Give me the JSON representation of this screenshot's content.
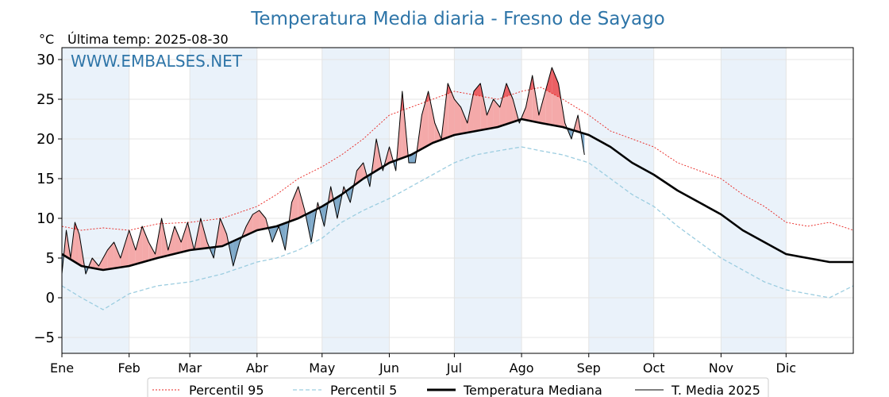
{
  "title": "Temperatura Media diaria - Fresno de Sayago",
  "unit_label": "°C",
  "last_temp_label": "Última temp: 2025-08-30",
  "watermark": "WWW.EMBALSES.NET",
  "chart_data": {
    "type": "line",
    "title": "Temperatura Media diaria - Fresno de Sayago",
    "ylabel": "°C",
    "ylim": [
      -7,
      31.5
    ],
    "xlim": [
      1,
      366
    ],
    "yticks": [
      -5,
      0,
      5,
      10,
      15,
      20,
      25,
      30
    ],
    "months": [
      "Ene",
      "Feb",
      "Mar",
      "Abr",
      "May",
      "Jun",
      "Jul",
      "Ago",
      "Sep",
      "Oct",
      "Nov",
      "Dic"
    ],
    "month_start_days": [
      1,
      32,
      60,
      91,
      121,
      152,
      182,
      213,
      244,
      274,
      305,
      335
    ],
    "x_unit": "day of year",
    "grid": true,
    "legend_position": "bottom",
    "last_day": 242,
    "colors": {
      "p95": "#e8231f",
      "p5": "#9ccde0",
      "median": "#000000",
      "t2025": "#000000",
      "above": "#f4a9a9",
      "above_dark": "#e8484d",
      "below": "#7fa9c9",
      "below_dark": "#1f4f82",
      "band": "#eaf2fa",
      "grid": "#e4e4e4"
    },
    "series": [
      {
        "key": "p95",
        "name": "Percentil 95",
        "style": "dotted",
        "x": [
          1,
          10,
          20,
          32,
          45,
          60,
          75,
          91,
          100,
          110,
          121,
          130,
          140,
          152,
          162,
          172,
          182,
          192,
          202,
          213,
          222,
          232,
          244,
          254,
          264,
          274,
          285,
          295,
          305,
          315,
          325,
          335,
          345,
          355,
          366
        ],
        "y": [
          9,
          8.5,
          8.8,
          8.5,
          9.3,
          9.5,
          10,
          11.5,
          13,
          15,
          16.5,
          18,
          20,
          23,
          24,
          25,
          26,
          25.5,
          25,
          26,
          26.5,
          25,
          23,
          21,
          20,
          19,
          17,
          16,
          15,
          13,
          11.5,
          9.5,
          9,
          9.5,
          8.5
        ]
      },
      {
        "key": "p5",
        "name": "Percentil 5",
        "style": "dashed",
        "x": [
          1,
          10,
          20,
          32,
          45,
          60,
          75,
          91,
          100,
          110,
          121,
          130,
          140,
          152,
          162,
          172,
          182,
          192,
          202,
          213,
          222,
          232,
          244,
          254,
          264,
          274,
          285,
          295,
          305,
          315,
          325,
          335,
          345,
          355,
          366
        ],
        "y": [
          1.5,
          0,
          -1.5,
          0.5,
          1.5,
          2,
          3,
          4.5,
          5,
          6,
          7.5,
          9.5,
          11,
          12.5,
          14,
          15.5,
          17,
          18,
          18.5,
          19,
          18.5,
          18,
          17,
          15,
          13,
          11.5,
          9,
          7,
          5,
          3.5,
          2,
          1,
          0.5,
          0,
          1.5
        ]
      },
      {
        "key": "median",
        "name": "Temperatura Mediana",
        "style": "solid-bold",
        "x": [
          1,
          10,
          20,
          32,
          45,
          60,
          75,
          91,
          100,
          110,
          121,
          130,
          140,
          152,
          162,
          172,
          182,
          192,
          202,
          213,
          222,
          232,
          244,
          254,
          264,
          274,
          285,
          295,
          305,
          315,
          325,
          335,
          345,
          355,
          366
        ],
        "y": [
          5.5,
          4,
          3.5,
          4,
          5,
          6,
          6.5,
          8.5,
          9,
          10,
          11.5,
          13,
          15,
          17,
          18,
          19.5,
          20.5,
          21,
          21.5,
          22.5,
          22,
          21.5,
          20.5,
          19,
          17,
          15.5,
          13.5,
          12,
          10.5,
          8.5,
          7,
          5.5,
          5,
          4.5,
          4.5
        ]
      },
      {
        "key": "t2025",
        "name": "T. Media 2025",
        "style": "solid-thin",
        "x": [
          1,
          3,
          5,
          7,
          9,
          12,
          15,
          18,
          22,
          25,
          28,
          32,
          35,
          38,
          41,
          44,
          47,
          50,
          53,
          56,
          59,
          62,
          65,
          68,
          71,
          74,
          77,
          80,
          83,
          86,
          89,
          92,
          95,
          98,
          101,
          104,
          107,
          110,
          113,
          116,
          119,
          122,
          125,
          128,
          131,
          134,
          137,
          140,
          143,
          146,
          149,
          152,
          155,
          158,
          161,
          164,
          167,
          170,
          173,
          176,
          179,
          182,
          185,
          188,
          191,
          194,
          197,
          200,
          203,
          206,
          209,
          212,
          215,
          218,
          221,
          224,
          227,
          230,
          233,
          236,
          239,
          242
        ],
        "y": [
          3,
          8.5,
          5,
          9.5,
          8,
          3,
          5,
          4,
          6,
          7,
          5,
          8.5,
          6,
          9,
          7,
          5.5,
          10,
          6,
          9,
          7,
          9.5,
          6,
          10,
          7,
          5,
          10,
          8,
          4,
          7,
          9,
          10.5,
          11,
          10,
          7,
          9,
          6,
          12,
          14,
          11,
          7,
          12,
          9,
          14,
          10,
          14,
          12,
          16,
          17,
          14,
          20,
          16,
          19,
          16,
          26,
          17,
          17,
          23,
          26,
          22,
          20,
          27,
          25,
          24,
          22,
          26,
          27,
          23,
          25,
          24,
          27,
          25,
          22,
          24,
          28,
          23,
          26,
          29,
          27,
          22,
          20,
          23,
          18
        ]
      }
    ]
  },
  "legend": [
    {
      "label": "Percentil 95"
    },
    {
      "label": "Percentil 5"
    },
    {
      "label": "Temperatura Mediana"
    },
    {
      "label": "T. Media 2025"
    }
  ]
}
